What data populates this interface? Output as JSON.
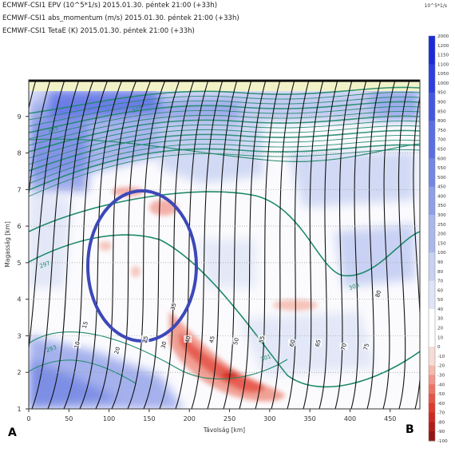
{
  "header": {
    "lines": [
      "ECMWF-CSI1 EPV (10^5*1/s) 2015.01.30. péntek 21:00 (+33h)",
      "ECMWF-CSI1 abs_momentum (m/s) 2015.01.30. péntek 21:00 (+33h)",
      "ECMWF-CSI1 TetaE (K) 2015.01.30. péntek 21:00 (+33h)"
    ],
    "unit": "10^5*1/s"
  },
  "corners": {
    "left": "A",
    "right": "B"
  },
  "colors": {
    "positive_ramp": [
      "#ffffff",
      "#dfe5f6",
      "#c7d1f1",
      "#a9b7ec",
      "#8e9fe8",
      "#7386e4",
      "#5a6ee3",
      "#4457e2",
      "#2d3fe0",
      "#1b2ad9"
    ],
    "negative_ramp": [
      "#f7dcd6",
      "#f4b9ad",
      "#f0968a",
      "#ec7466",
      "#e65447",
      "#de3a2d",
      "#cc2a21",
      "#b11e18",
      "#951512"
    ],
    "abs_momentum_line": "#111111",
    "thetae_line": "#1f8a6a",
    "ellipse": "#3d48b8"
  },
  "chart_data": {
    "type": "cross-section contour",
    "xlabel": "Távolság [km]",
    "ylabel": "Magasság [km]",
    "xlim": [
      0,
      487
    ],
    "ylim": [
      1,
      10
    ],
    "xticks": [
      "0",
      "50",
      "100",
      "150",
      "200",
      "250",
      "300",
      "350",
      "400",
      "450"
    ],
    "yticks": [
      "1",
      "2",
      "3",
      "4",
      "5",
      "6",
      "7",
      "8",
      "9"
    ],
    "colorbar": {
      "labels": [
        "2000",
        "1200",
        "1150",
        "1100",
        "1050",
        "1000",
        "950",
        "900",
        "850",
        "800",
        "750",
        "700",
        "650",
        "600",
        "550",
        "500",
        "450",
        "400",
        "350",
        "300",
        "250",
        "200",
        "150",
        "100",
        "90",
        "80",
        "70",
        "60",
        "50",
        "40",
        "30",
        "20",
        "10",
        "0",
        "-10",
        "-20",
        "-30",
        "-40",
        "-50",
        "-60",
        "-70",
        "-80",
        "-90",
        "-100"
      ]
    },
    "abs_momentum_labels": [
      {
        "text": "10",
        "x": 60,
        "y": 2.75
      },
      {
        "text": "15",
        "x": 70,
        "y": 3.3
      },
      {
        "text": "20",
        "x": 110,
        "y": 2.6
      },
      {
        "text": "25",
        "x": 145,
        "y": 2.9
      },
      {
        "text": "30",
        "x": 168,
        "y": 2.75
      },
      {
        "text": "35",
        "x": 180,
        "y": 3.8
      },
      {
        "text": "40",
        "x": 198,
        "y": 2.9
      },
      {
        "text": "45",
        "x": 228,
        "y": 2.9
      },
      {
        "text": "50",
        "x": 258,
        "y": 2.85
      },
      {
        "text": "55",
        "x": 290,
        "y": 2.9
      },
      {
        "text": "60",
        "x": 328,
        "y": 2.8
      },
      {
        "text": "65",
        "x": 360,
        "y": 2.8
      },
      {
        "text": "70",
        "x": 392,
        "y": 2.7
      },
      {
        "text": "75",
        "x": 420,
        "y": 2.7
      },
      {
        "text": "80",
        "x": 435,
        "y": 4.15
      }
    ],
    "thetae_labels": [
      {
        "text": "293",
        "x": 28,
        "y": 2.65
      },
      {
        "text": "297",
        "x": 20,
        "y": 4.95
      },
      {
        "text": "305",
        "x": 30,
        "y": 8.65
      },
      {
        "text": "301",
        "x": 295,
        "y": 2.4
      },
      {
        "text": "303",
        "x": 405,
        "y": 4.35
      },
      {
        "text": "319",
        "x": 135,
        "y": 9.2
      }
    ]
  }
}
